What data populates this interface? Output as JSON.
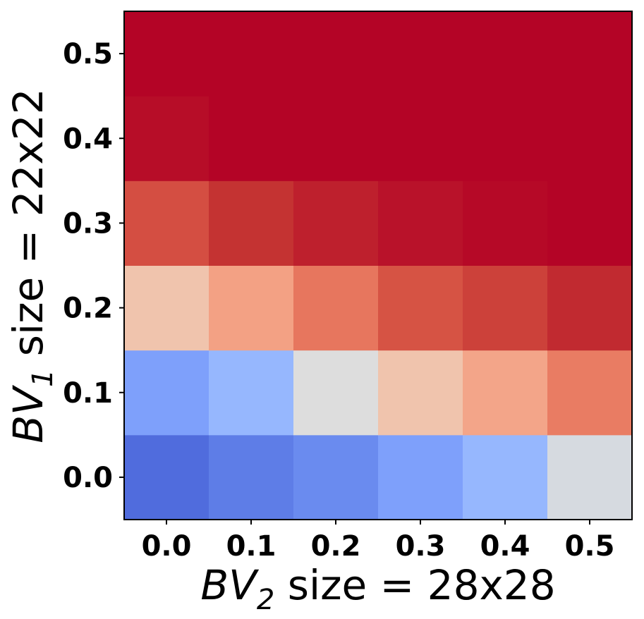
{
  "chart_data": {
    "type": "heatmap",
    "x": [
      0.0,
      0.1,
      0.2,
      0.3,
      0.4,
      0.5
    ],
    "y": [
      0.0,
      0.1,
      0.2,
      0.3,
      0.4,
      0.5
    ],
    "x_tick_labels": [
      "0.0",
      "0.1",
      "0.2",
      "0.3",
      "0.4",
      "0.5"
    ],
    "y_tick_labels": [
      "0.0",
      "0.1",
      "0.2",
      "0.3",
      "0.4",
      "0.5"
    ],
    "xlabel": {
      "prefix": "BV",
      "sub": "2",
      "rest": " size = 28x28"
    },
    "ylabel": {
      "prefix": "BV",
      "sub": "1",
      "rest": " size = 22x22"
    },
    "colormap": "coolwarm",
    "values": [
      [
        0.1,
        0.16,
        0.21,
        0.29,
        0.38,
        0.49
      ],
      [
        0.29,
        0.38,
        0.5,
        0.6,
        0.67,
        0.75
      ],
      [
        0.6,
        0.68,
        0.76,
        0.83,
        0.87,
        0.92
      ],
      [
        0.84,
        0.9,
        0.94,
        0.97,
        0.99,
        1.0
      ],
      [
        0.98,
        1.0,
        1.0,
        1.0,
        1.0,
        1.0
      ],
      [
        1.0,
        1.0,
        1.0,
        1.0,
        1.0,
        1.0
      ]
    ]
  }
}
